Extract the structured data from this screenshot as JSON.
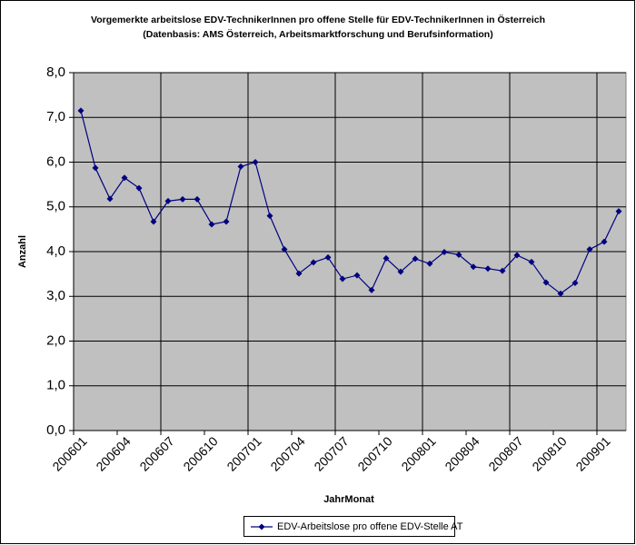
{
  "chart_data": {
    "type": "line",
    "title": "Vorgemerkte arbeitslose EDV-TechnikerInnen pro offene Stelle für EDV-TechnikerInnen in Österreich",
    "subtitle": "(Datenbasis: AMS Österreich, Arbeitsmarktforschung und Berufsinformation)",
    "x_label": "JahrMonat",
    "y_label": "Anzahl",
    "categories": [
      "200601",
      null,
      null,
      "200604",
      null,
      null,
      "200607",
      null,
      null,
      "200610",
      null,
      null,
      "200701",
      null,
      null,
      "200704",
      null,
      null,
      "200707",
      null,
      null,
      "200710",
      null,
      null,
      "200801",
      null,
      null,
      "200804",
      null,
      null,
      "200807",
      null,
      null,
      "200810",
      null,
      null,
      "200901",
      null
    ],
    "series": [
      {
        "name": "EDV-Arbeitslose pro offene EDV-Stelle AT",
        "color": "#000080",
        "values": [
          7.15,
          5.87,
          5.18,
          5.65,
          5.42,
          4.67,
          5.13,
          5.17,
          5.17,
          4.61,
          4.67,
          5.9,
          6.0,
          4.8,
          4.05,
          3.51,
          3.76,
          3.87,
          3.39,
          3.47,
          3.14,
          3.85,
          3.55,
          3.84,
          3.73,
          3.99,
          3.93,
          3.66,
          3.62,
          3.57,
          3.92,
          3.77,
          3.31,
          3.06,
          3.3,
          4.05,
          4.22,
          4.9
        ]
      }
    ],
    "ylim": [
      0,
      8
    ],
    "yticks": [
      {
        "value": 0,
        "label": "0,0"
      },
      {
        "value": 1,
        "label": "1,0"
      },
      {
        "value": 2,
        "label": "2,0"
      },
      {
        "value": 3,
        "label": "3,0"
      },
      {
        "value": 4,
        "label": "4,0"
      },
      {
        "value": 5,
        "label": "5,0"
      },
      {
        "value": 6,
        "label": "6,0"
      },
      {
        "value": 7,
        "label": "7,0"
      },
      {
        "value": 8,
        "label": "8,0"
      }
    ],
    "grid": true,
    "legend": "bottom",
    "plot_background": "#c0c0c0"
  }
}
